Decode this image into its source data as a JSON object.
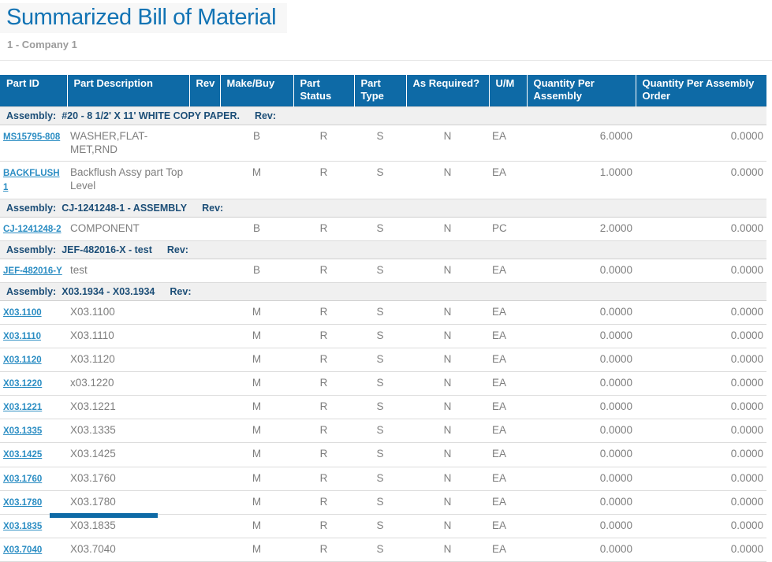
{
  "page": {
    "title": "Summarized Bill of Material",
    "subtitle": "1 - Company 1"
  },
  "colors": {
    "title-color": "#1273b4",
    "subtitle-color": "#9c9c9c",
    "header-bg": "#0e6aa6",
    "group-bg": "#f0f0f0",
    "group-text": "#1c4e77",
    "body-text": "#7e7e7e",
    "link-color": "#2b8dc3"
  },
  "table": {
    "columns": [
      "Part ID",
      "Part Description",
      "Rev",
      "Make/Buy",
      "Part Status",
      "Part Type",
      "As Required?",
      "U/M",
      "Quantity Per Assembly",
      "Quantity Per Assembly Order"
    ],
    "groups": [
      {
        "label": "Assembly:",
        "id": "#20",
        "desc": "8 1/2' X 11' WHITE COPY PAPER.",
        "rev_label": "Rev:",
        "rows": [
          {
            "part_id": "MS15795-808",
            "desc": "WASHER,FLAT-MET,RND",
            "rev": "",
            "make_buy": "B",
            "part_status": "R",
            "part_type": "S",
            "as_required": "N",
            "um": "EA",
            "qty_per_assembly": "6.0000",
            "qty_per_assembly_order": "0.0000"
          },
          {
            "part_id": "BACKFLUSH1",
            "desc": "Backflush Assy part Top Level",
            "rev": "",
            "make_buy": "M",
            "part_status": "R",
            "part_type": "S",
            "as_required": "N",
            "um": "EA",
            "qty_per_assembly": "1.0000",
            "qty_per_assembly_order": "0.0000"
          }
        ]
      },
      {
        "label": "Assembly:",
        "id": "CJ-1241248-1",
        "desc": "ASSEMBLY",
        "rev_label": "Rev:",
        "rows": [
          {
            "part_id": "CJ-1241248-2",
            "desc": "COMPONENT",
            "rev": "",
            "make_buy": "B",
            "part_status": "R",
            "part_type": "S",
            "as_required": "N",
            "um": "PC",
            "qty_per_assembly": "2.0000",
            "qty_per_assembly_order": "0.0000"
          }
        ]
      },
      {
        "label": "Assembly:",
        "id": "JEF-482016-X",
        "desc": "test",
        "rev_label": "Rev:",
        "rows": [
          {
            "part_id": "JEF-482016-Y",
            "desc": "test",
            "rev": "",
            "make_buy": "B",
            "part_status": "R",
            "part_type": "S",
            "as_required": "N",
            "um": "EA",
            "qty_per_assembly": "0.0000",
            "qty_per_assembly_order": "0.0000"
          }
        ]
      },
      {
        "label": "Assembly:",
        "id": "X03.1934",
        "desc": "X03.1934",
        "rev_label": "Rev:",
        "rows": [
          {
            "part_id": "X03.1100",
            "desc": "X03.1100",
            "rev": "",
            "make_buy": "M",
            "part_status": "R",
            "part_type": "S",
            "as_required": "N",
            "um": "EA",
            "qty_per_assembly": "0.0000",
            "qty_per_assembly_order": "0.0000"
          },
          {
            "part_id": "X03.1110",
            "desc": "X03.1110",
            "rev": "",
            "make_buy": "M",
            "part_status": "R",
            "part_type": "S",
            "as_required": "N",
            "um": "EA",
            "qty_per_assembly": "0.0000",
            "qty_per_assembly_order": "0.0000"
          },
          {
            "part_id": "X03.1120",
            "desc": "X03.1120",
            "rev": "",
            "make_buy": "M",
            "part_status": "R",
            "part_type": "S",
            "as_required": "N",
            "um": "EA",
            "qty_per_assembly": "0.0000",
            "qty_per_assembly_order": "0.0000"
          },
          {
            "part_id": "X03.1220",
            "desc": "x03.1220",
            "rev": "",
            "make_buy": "M",
            "part_status": "R",
            "part_type": "S",
            "as_required": "N",
            "um": "EA",
            "qty_per_assembly": "0.0000",
            "qty_per_assembly_order": "0.0000"
          },
          {
            "part_id": "X03.1221",
            "desc": "X03.1221",
            "rev": "",
            "make_buy": "M",
            "part_status": "R",
            "part_type": "S",
            "as_required": "N",
            "um": "EA",
            "qty_per_assembly": "0.0000",
            "qty_per_assembly_order": "0.0000"
          },
          {
            "part_id": "X03.1335",
            "desc": "X03.1335",
            "rev": "",
            "make_buy": "M",
            "part_status": "R",
            "part_type": "S",
            "as_required": "N",
            "um": "EA",
            "qty_per_assembly": "0.0000",
            "qty_per_assembly_order": "0.0000"
          },
          {
            "part_id": "X03.1425",
            "desc": "X03.1425",
            "rev": "",
            "make_buy": "M",
            "part_status": "R",
            "part_type": "S",
            "as_required": "N",
            "um": "EA",
            "qty_per_assembly": "0.0000",
            "qty_per_assembly_order": "0.0000"
          },
          {
            "part_id": "X03.1760",
            "desc": "X03.1760",
            "rev": "",
            "make_buy": "M",
            "part_status": "R",
            "part_type": "S",
            "as_required": "N",
            "um": "EA",
            "qty_per_assembly": "0.0000",
            "qty_per_assembly_order": "0.0000"
          },
          {
            "part_id": "X03.1780",
            "desc": "X03.1780",
            "rev": "",
            "make_buy": "M",
            "part_status": "R",
            "part_type": "S",
            "as_required": "N",
            "um": "EA",
            "qty_per_assembly": "0.0000",
            "qty_per_assembly_order": "0.0000"
          },
          {
            "part_id": "X03.1835",
            "desc": "X03.1835",
            "rev": "",
            "make_buy": "M",
            "part_status": "R",
            "part_type": "S",
            "as_required": "N",
            "um": "EA",
            "qty_per_assembly": "0.0000",
            "qty_per_assembly_order": "0.0000"
          },
          {
            "part_id": "X03.7040",
            "desc": "X03.7040",
            "rev": "",
            "make_buy": "M",
            "part_status": "R",
            "part_type": "S",
            "as_required": "N",
            "um": "EA",
            "qty_per_assembly": "0.0000",
            "qty_per_assembly_order": "0.0000"
          }
        ]
      }
    ]
  }
}
